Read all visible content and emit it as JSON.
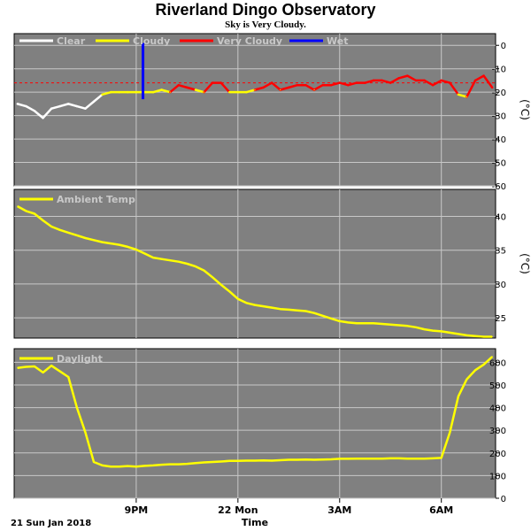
{
  "title": "Riverland Dingo Observatory",
  "subtitle": "Sky is Very Cloudy.",
  "colors": {
    "panel_bg": "#808080",
    "border": "#000000",
    "gridline": "#c8c8c8",
    "clear": "#ffffff",
    "cloudy": "#ffff00",
    "very_cloudy": "#ff0000",
    "wet": "#0000ff",
    "threshold_line": "#ff0000",
    "legend_text": "#c8c8c8"
  },
  "x_axis": {
    "label": "Time",
    "start_label": "21 Sun Jan 2018",
    "tick_labels": [
      "9PM",
      "22 Mon",
      "3AM",
      "6AM"
    ]
  },
  "chart_data": [
    {
      "type": "line",
      "name": "sky-panel",
      "ylabel": "(°C)",
      "ylim": [
        -60,
        5
      ],
      "yticks": [
        0,
        -10,
        -20,
        -30,
        -40,
        -50,
        -60
      ],
      "grid": true,
      "legend_placement": "top-left",
      "legend": [
        "Clear",
        "Cloudy",
        "Very Cloudy",
        "Wet"
      ],
      "threshold": -16,
      "x_hours": [
        17.5,
        17.75,
        18.0,
        18.25,
        18.5,
        18.75,
        19.0,
        19.25,
        19.5,
        19.75,
        20.0,
        20.25,
        20.5,
        20.75,
        21.0,
        21.25,
        21.5,
        21.75,
        22.0,
        22.25,
        22.5,
        22.75,
        23.0,
        23.25,
        23.5,
        23.75,
        24.0,
        24.25,
        24.5,
        24.75,
        25.0,
        25.25,
        25.5,
        25.75,
        26.0,
        26.25,
        26.5,
        26.75,
        27.0,
        27.25,
        27.5,
        27.75,
        28.0,
        28.25,
        28.5,
        28.75,
        29.0,
        29.25,
        29.5,
        29.75,
        30.0,
        30.25,
        30.5,
        30.75,
        31.0,
        31.25,
        31.5
      ],
      "values": [
        -25,
        -26,
        -28,
        -31,
        -27,
        -26,
        -25,
        -26,
        -27,
        -24,
        -21,
        -20,
        -20,
        -20,
        -20,
        -20,
        -20,
        -19,
        -20,
        -17,
        -18,
        -19,
        -20,
        -16,
        -16,
        -20,
        -20,
        -20,
        -19,
        -18,
        -16,
        -19,
        -18,
        -17,
        -17,
        -19,
        -17,
        -17,
        -16,
        -17,
        -16,
        -16,
        -15,
        -15,
        -16,
        -14,
        -13,
        -15,
        -15,
        -17,
        -15,
        -16,
        -21,
        -22,
        -15,
        -13,
        -18
      ],
      "wet_spike": {
        "x_hour": 21.2,
        "ymin": -23,
        "ymax": 1
      }
    },
    {
      "type": "line",
      "name": "ambient-temp-panel",
      "ylabel": "(°C)",
      "ylim": [
        22,
        44
      ],
      "yticks": [
        25,
        30,
        35,
        40
      ],
      "grid": true,
      "legend_placement": "top-left",
      "series": [
        {
          "name": "Ambient Temp",
          "x_hours": [
            17.5,
            17.75,
            18.0,
            18.25,
            18.5,
            18.75,
            19.0,
            19.25,
            19.5,
            19.75,
            20.0,
            20.25,
            20.5,
            20.75,
            21.0,
            21.25,
            21.5,
            21.75,
            22.0,
            22.25,
            22.5,
            22.75,
            23.0,
            23.25,
            23.5,
            23.75,
            24.0,
            24.25,
            24.5,
            24.75,
            25.0,
            25.25,
            25.5,
            25.75,
            26.0,
            26.25,
            26.5,
            26.75,
            27.0,
            27.25,
            27.5,
            27.75,
            28.0,
            28.25,
            28.5,
            28.75,
            29.0,
            29.25,
            29.5,
            29.75,
            30.0,
            30.25,
            30.5,
            30.75,
            31.0,
            31.25,
            31.5
          ],
          "values": [
            41.5,
            40.8,
            40.4,
            39.4,
            38.5,
            38.0,
            37.6,
            37.2,
            36.8,
            36.5,
            36.2,
            36.0,
            35.8,
            35.5,
            35.1,
            34.5,
            33.9,
            33.7,
            33.5,
            33.3,
            33.0,
            32.6,
            32.0,
            31.0,
            29.9,
            28.9,
            27.8,
            27.2,
            26.9,
            26.7,
            26.5,
            26.3,
            26.2,
            26.1,
            26.0,
            25.7,
            25.3,
            24.9,
            24.5,
            24.3,
            24.2,
            24.2,
            24.2,
            24.1,
            24.0,
            23.9,
            23.8,
            23.6,
            23.3,
            23.1,
            23.0,
            22.8,
            22.6,
            22.4,
            22.3,
            22.2,
            22.2
          ]
        }
      ]
    },
    {
      "type": "line",
      "name": "daylight-panel",
      "ylabel": "",
      "ylim": [
        0,
        660
      ],
      "yticks": [
        0,
        100,
        200,
        300,
        400,
        500,
        600
      ],
      "grid": true,
      "legend_placement": "top-left",
      "series": [
        {
          "name": "Daylight",
          "x_hours": [
            17.5,
            17.75,
            18.0,
            18.25,
            18.5,
            18.75,
            19.0,
            19.25,
            19.5,
            19.75,
            20.0,
            20.25,
            20.5,
            20.75,
            21.0,
            21.25,
            21.5,
            21.75,
            22.0,
            22.25,
            22.5,
            22.75,
            23.0,
            23.25,
            23.5,
            23.75,
            24.0,
            24.25,
            24.5,
            24.75,
            25.0,
            25.25,
            25.5,
            25.75,
            26.0,
            26.25,
            26.5,
            26.75,
            27.0,
            27.25,
            27.5,
            27.75,
            28.0,
            28.25,
            28.5,
            28.75,
            29.0,
            29.25,
            29.5,
            29.75,
            30.0,
            30.25,
            30.5,
            30.75,
            31.0,
            31.25,
            31.5
          ],
          "values": [
            575,
            580,
            582,
            555,
            585,
            560,
            535,
            400,
            290,
            160,
            145,
            140,
            140,
            142,
            140,
            143,
            145,
            148,
            150,
            150,
            152,
            155,
            158,
            160,
            162,
            165,
            165,
            166,
            166,
            167,
            166,
            168,
            170,
            170,
            171,
            170,
            171,
            172,
            174,
            174,
            175,
            175,
            175,
            175,
            176,
            176,
            175,
            175,
            175,
            176,
            178,
            290,
            450,
            525,
            565,
            590,
            625
          ]
        }
      ]
    }
  ]
}
